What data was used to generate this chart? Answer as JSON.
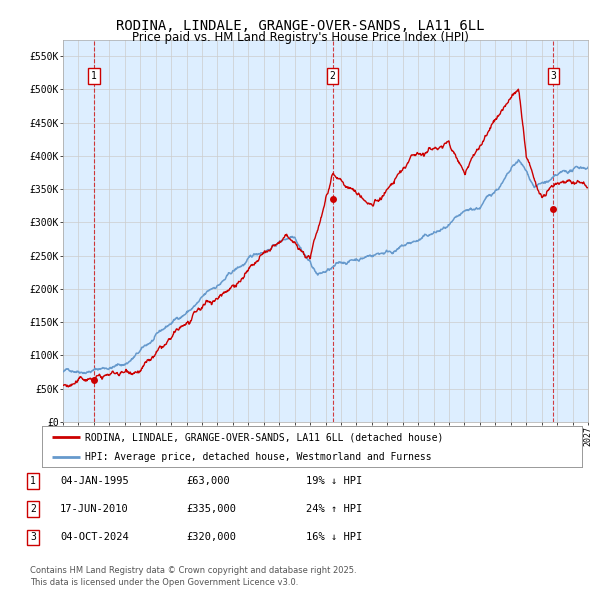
{
  "title": "RODINA, LINDALE, GRANGE-OVER-SANDS, LA11 6LL",
  "subtitle": "Price paid vs. HM Land Registry's House Price Index (HPI)",
  "title_fontsize": 10,
  "subtitle_fontsize": 8.5,
  "x_start_year": 1993,
  "x_end_year": 2027,
  "y_min": 0,
  "y_max": 575000,
  "y_ticks": [
    0,
    50000,
    100000,
    150000,
    200000,
    250000,
    300000,
    350000,
    400000,
    450000,
    500000,
    550000
  ],
  "y_tick_labels": [
    "£0",
    "£50K",
    "£100K",
    "£150K",
    "£200K",
    "£250K",
    "£300K",
    "£350K",
    "£400K",
    "£450K",
    "£500K",
    "£550K"
  ],
  "hpi_color": "#6699cc",
  "price_color": "#cc0000",
  "background_plot": "#ddeeff",
  "background_fig": "#ffffff",
  "grid_color": "#cccccc",
  "sale1_year": 1995.01,
  "sale1_price": 63000,
  "sale1_label": "1",
  "sale2_year": 2010.46,
  "sale2_price": 335000,
  "sale2_label": "2",
  "sale3_year": 2024.75,
  "sale3_price": 320000,
  "sale3_label": "3",
  "legend_line1": "RODINA, LINDALE, GRANGE-OVER-SANDS, LA11 6LL (detached house)",
  "legend_line2": "HPI: Average price, detached house, Westmorland and Furness",
  "table_rows": [
    {
      "num": "1",
      "date": "04-JAN-1995",
      "price": "£63,000",
      "pct": "19% ↓ HPI"
    },
    {
      "num": "2",
      "date": "17-JUN-2010",
      "price": "£335,000",
      "pct": "24% ↑ HPI"
    },
    {
      "num": "3",
      "date": "04-OCT-2024",
      "price": "£320,000",
      "pct": "16% ↓ HPI"
    }
  ],
  "footer": "Contains HM Land Registry data © Crown copyright and database right 2025.\nThis data is licensed under the Open Government Licence v3.0."
}
